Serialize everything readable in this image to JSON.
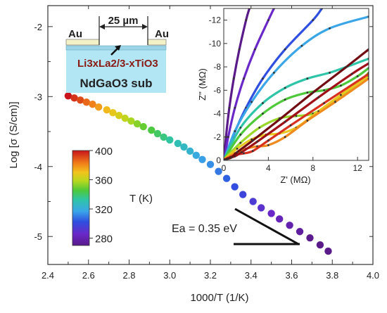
{
  "chart_data": [
    {
      "type": "scatter",
      "title": "",
      "xlabel": "1000/T (1/K)",
      "ylabel": "Log [σ (S/cm)]",
      "xlim": [
        2.4,
        4.0
      ],
      "ylim": [
        -5.4,
        -1.7
      ],
      "xticks": [
        "2.4",
        "2.6",
        "2.8",
        "3.0",
        "3.2",
        "3.4",
        "3.6",
        "3.8",
        "4.0"
      ],
      "yticks": [
        "-2",
        "-3",
        "-4",
        "-5"
      ],
      "points": [
        {
          "x": 2.5,
          "y": -2.99,
          "T": 400
        },
        {
          "x": 2.53,
          "y": -3.02,
          "T": 395
        },
        {
          "x": 2.56,
          "y": -3.05,
          "T": 391
        },
        {
          "x": 2.59,
          "y": -3.08,
          "T": 386
        },
        {
          "x": 2.62,
          "y": -3.11,
          "T": 382
        },
        {
          "x": 2.65,
          "y": -3.15,
          "T": 377
        },
        {
          "x": 2.69,
          "y": -3.19,
          "T": 372
        },
        {
          "x": 2.72,
          "y": -3.23,
          "T": 368
        },
        {
          "x": 2.75,
          "y": -3.27,
          "T": 364
        },
        {
          "x": 2.78,
          "y": -3.31,
          "T": 360
        },
        {
          "x": 2.81,
          "y": -3.35,
          "T": 356
        },
        {
          "x": 2.84,
          "y": -3.39,
          "T": 352
        },
        {
          "x": 2.87,
          "y": -3.43,
          "T": 348
        },
        {
          "x": 2.91,
          "y": -3.48,
          "T": 344
        },
        {
          "x": 2.94,
          "y": -3.53,
          "T": 340
        },
        {
          "x": 2.97,
          "y": -3.58,
          "T": 337
        },
        {
          "x": 3.0,
          "y": -3.62,
          "T": 333
        },
        {
          "x": 3.04,
          "y": -3.67,
          "T": 329
        },
        {
          "x": 3.07,
          "y": -3.72,
          "T": 326
        },
        {
          "x": 3.1,
          "y": -3.78,
          "T": 323
        },
        {
          "x": 3.13,
          "y": -3.84,
          "T": 319
        },
        {
          "x": 3.16,
          "y": -3.9,
          "T": 316
        },
        {
          "x": 3.2,
          "y": -3.97,
          "T": 313
        },
        {
          "x": 3.24,
          "y": -4.07,
          "T": 309
        },
        {
          "x": 3.28,
          "y": -4.17,
          "T": 305
        },
        {
          "x": 3.32,
          "y": -4.29,
          "T": 301
        },
        {
          "x": 3.36,
          "y": -4.4,
          "T": 298
        },
        {
          "x": 3.41,
          "y": -4.5,
          "T": 294
        },
        {
          "x": 3.45,
          "y": -4.59,
          "T": 290
        },
        {
          "x": 3.5,
          "y": -4.67,
          "T": 286
        },
        {
          "x": 3.54,
          "y": -4.75,
          "T": 282
        },
        {
          "x": 3.59,
          "y": -4.84,
          "T": 279
        },
        {
          "x": 3.64,
          "y": -4.93,
          "T": 275
        },
        {
          "x": 3.69,
          "y": -5.02,
          "T": 271
        },
        {
          "x": 3.74,
          "y": -5.12,
          "T": 267
        },
        {
          "x": 3.78,
          "y": -5.21,
          "T": 264
        }
      ],
      "colorbar": {
        "label": "T (K)",
        "range": [
          270,
          400
        ],
        "ticks": [
          "400",
          "360",
          "320",
          "280"
        ]
      },
      "annotation": "Ea = 0.35 eV",
      "schematic": {
        "electrode_left": "Au",
        "electrode_right": "Au",
        "gap": "25 µm",
        "film": "Li3xLa2/3-xTiO3",
        "substrate": "NdGaO3 sub"
      }
    },
    {
      "type": "line",
      "title": "",
      "xlabel": "Z' (MΩ)",
      "ylabel": "Z'' (MΩ)",
      "xlim": [
        0,
        13
      ],
      "ylim": [
        0,
        -13
      ],
      "xticks": [
        "0",
        "4",
        "8",
        "12"
      ],
      "yticks": [
        "-12",
        "-10",
        "-8",
        "-6",
        "-4",
        "-2",
        "0"
      ],
      "series": [
        {
          "color": "#5a1a8a",
          "points": [
            [
              0.05,
              -0.1
            ],
            [
              0.2,
              -2
            ],
            [
              0.5,
              -4.5
            ],
            [
              0.9,
              -7
            ],
            [
              1.4,
              -9.5
            ],
            [
              2.0,
              -12
            ],
            [
              2.3,
              -13
            ]
          ]
        },
        {
          "color": "#6a28c8",
          "points": [
            [
              0.05,
              -0.1
            ],
            [
              0.4,
              -2
            ],
            [
              1.0,
              -4.5
            ],
            [
              1.8,
              -7
            ],
            [
              2.8,
              -9.5
            ],
            [
              4.0,
              -12
            ],
            [
              4.5,
              -13
            ]
          ]
        },
        {
          "color": "#2e4fe0",
          "points": [
            [
              0.05,
              -0.1
            ],
            [
              0.8,
              -2
            ],
            [
              2.0,
              -4.5
            ],
            [
              3.5,
              -7
            ],
            [
              5.5,
              -9.5
            ],
            [
              8.0,
              -12
            ],
            [
              8.8,
              -13
            ]
          ]
        },
        {
          "color": "#3aa6e8",
          "points": [
            [
              0.05,
              -0.1
            ],
            [
              1.0,
              -2.5
            ],
            [
              2.5,
              -5
            ],
            [
              4.5,
              -7.5
            ],
            [
              7.0,
              -9.8
            ],
            [
              9.5,
              -11.3
            ],
            [
              13.0,
              -12.3
            ]
          ]
        },
        {
          "color": "#2ec4a8",
          "points": [
            [
              0.05,
              -0.1
            ],
            [
              1.5,
              -2.8
            ],
            [
              3.5,
              -4.9
            ],
            [
              5.5,
              -6.2
            ],
            [
              7.5,
              -7.0
            ],
            [
              9.5,
              -7.5
            ],
            [
              11.0,
              -8.0
            ],
            [
              13.0,
              -8.7
            ]
          ]
        },
        {
          "color": "#4ec93a",
          "points": [
            [
              0.05,
              -0.1
            ],
            [
              1.5,
              -2.2
            ],
            [
              3.5,
              -4.0
            ],
            [
              5.5,
              -5.2
            ],
            [
              7.5,
              -5.8
            ],
            [
              9.0,
              -6.0
            ],
            [
              10.5,
              -6.4
            ],
            [
              12.0,
              -7.2
            ],
            [
              13.0,
              -7.9
            ]
          ]
        },
        {
          "color": "#9ad82a",
          "points": [
            [
              0.05,
              -0.1
            ],
            [
              1.5,
              -1.5
            ],
            [
              3.2,
              -2.8
            ],
            [
              5.0,
              -3.6
            ],
            [
              6.5,
              -3.8
            ],
            [
              8.0,
              -4.0
            ],
            [
              10.0,
              -5.1
            ],
            [
              12.0,
              -6.6
            ],
            [
              13.0,
              -7.5
            ]
          ]
        },
        {
          "color": "#e8c81e",
          "points": [
            [
              0.05,
              -0.1
            ],
            [
              1.2,
              -1.0
            ],
            [
              2.5,
              -1.8
            ],
            [
              3.8,
              -2.2
            ],
            [
              5.0,
              -2.3
            ],
            [
              6.5,
              -2.8
            ],
            [
              8.5,
              -4.2
            ],
            [
              10.5,
              -5.6
            ],
            [
              13.0,
              -7.2
            ]
          ]
        },
        {
          "color": "#f08a1e",
          "points": [
            [
              0.05,
              -0.1
            ],
            [
              1.0,
              -0.6
            ],
            [
              2.0,
              -1.0
            ],
            [
              3.0,
              -1.2
            ],
            [
              4.0,
              -1.3
            ],
            [
              5.5,
              -2.0
            ],
            [
              7.5,
              -3.4
            ],
            [
              10.0,
              -5.0
            ],
            [
              13.0,
              -7.0
            ]
          ]
        },
        {
          "color": "#d8301e",
          "points": [
            [
              0.05,
              -0.05
            ],
            [
              0.6,
              -0.3
            ],
            [
              1.2,
              -0.5
            ],
            [
              1.8,
              -0.6
            ],
            [
              2.6,
              -0.8
            ],
            [
              4.0,
              -1.7
            ],
            [
              6.0,
              -3.0
            ],
            [
              9.0,
              -4.9
            ],
            [
              13.0,
              -7.4
            ]
          ]
        },
        {
          "color": "#a01018",
          "points": [
            [
              0.02,
              -0.02
            ],
            [
              0.3,
              -0.15
            ],
            [
              0.6,
              -0.25
            ],
            [
              1.0,
              -0.35
            ],
            [
              1.6,
              -0.7
            ],
            [
              3.0,
              -1.6
            ],
            [
              5.5,
              -3.3
            ],
            [
              8.5,
              -5.4
            ],
            [
              11.5,
              -7.4
            ],
            [
              13.0,
              -8.3
            ]
          ]
        },
        {
          "color": "#700c12",
          "points": [
            [
              0.02,
              -0.02
            ],
            [
              0.2,
              -0.1
            ],
            [
              0.4,
              -0.15
            ],
            [
              0.7,
              -0.25
            ],
            [
              1.2,
              -0.7
            ],
            [
              2.6,
              -1.7
            ],
            [
              5.0,
              -3.5
            ],
            [
              8.0,
              -5.8
            ],
            [
              11.0,
              -8.0
            ],
            [
              13.0,
              -9.5
            ]
          ]
        }
      ]
    }
  ]
}
